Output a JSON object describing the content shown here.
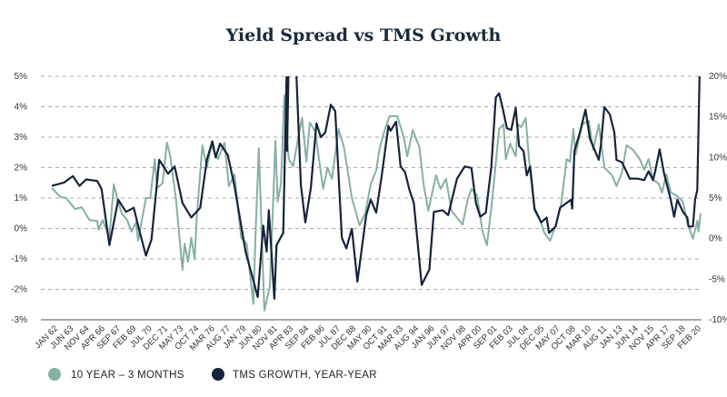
{
  "chart_data": {
    "type": "line",
    "title": "Yield Spread vs TMS Growth",
    "x_tick_labels": [
      "JAN 62",
      "JUN 63",
      "NOV 64",
      "APR 66",
      "SEP 67",
      "FEB 69",
      "JUL 70",
      "DEC 71",
      "MAY 73",
      "OCT 74",
      "MAR 76",
      "AUG 77",
      "JAN 79",
      "JUN 80",
      "NOV 81",
      "APR 83",
      "SEP 84",
      "FEB 86",
      "JUL 87",
      "DEC 88",
      "MAY 90",
      "OCT 91",
      "MAR 93",
      "AUG 94",
      "JAN 96",
      "JUN 97",
      "NOV 98",
      "APR 00",
      "SEP 01",
      "FEB 03",
      "JUL 04",
      "DEC 05",
      "MAY 07",
      "OCT 08",
      "MAR 10",
      "AUG 11",
      "JAN 13",
      "JUN 14",
      "NOV 15",
      "APR 17",
      "SEP 18",
      "FEB 20"
    ],
    "x_range": [
      1962.0,
      2020.6
    ],
    "y_left": {
      "range": [
        -3,
        5
      ],
      "ticks": [
        "-3%",
        "-2%",
        "-1%",
        "0%",
        "1%",
        "2%",
        "3%",
        "4%",
        "5%"
      ]
    },
    "y_right": {
      "range": [
        -10,
        20
      ],
      "ticks": [
        "-10%",
        "-5%",
        "0%",
        "5%",
        "10%",
        "15%",
        "20%"
      ]
    },
    "grid": true,
    "legend_placement": "bottom-left",
    "series": [
      {
        "name": "10 YEAR – 3 MONTHS",
        "axis": "left",
        "color": "#86b0a0",
        "points": [
          [
            1962.0,
            1.33
          ],
          [
            1962.8,
            1.03
          ],
          [
            1963.3,
            1.0
          ],
          [
            1964.1,
            0.64
          ],
          [
            1964.7,
            0.7
          ],
          [
            1965.4,
            0.28
          ],
          [
            1966.1,
            0.25
          ],
          [
            1966.2,
            -0.04
          ],
          [
            1966.6,
            0.28
          ],
          [
            1967.2,
            -0.3
          ],
          [
            1967.6,
            1.45
          ],
          [
            1967.9,
            1.0
          ],
          [
            1968.3,
            0.5
          ],
          [
            1968.8,
            0.28
          ],
          [
            1969.2,
            -0.1
          ],
          [
            1969.6,
            0.2
          ],
          [
            1969.8,
            -0.4
          ],
          [
            1970.5,
            1.0
          ],
          [
            1970.9,
            1.0
          ],
          [
            1971.3,
            2.28
          ],
          [
            1971.5,
            1.33
          ],
          [
            1972.0,
            1.48
          ],
          [
            1972.4,
            2.82
          ],
          [
            1972.7,
            2.37
          ],
          [
            1973.2,
            1.0
          ],
          [
            1973.8,
            -1.36
          ],
          [
            1974.0,
            -0.5
          ],
          [
            1974.3,
            -1.1
          ],
          [
            1974.6,
            -0.3
          ],
          [
            1974.9,
            -1.0
          ],
          [
            1975.1,
            0.4
          ],
          [
            1975.6,
            2.73
          ],
          [
            1976.0,
            2.0
          ],
          [
            1976.4,
            2.73
          ],
          [
            1977.0,
            2.28
          ],
          [
            1977.6,
            2.82
          ],
          [
            1978.0,
            1.39
          ],
          [
            1978.5,
            1.78
          ],
          [
            1979.1,
            -0.3
          ],
          [
            1979.6,
            -0.5
          ],
          [
            1980.2,
            -2.48
          ],
          [
            1980.4,
            -0.2
          ],
          [
            1980.7,
            2.64
          ],
          [
            1981.2,
            -2.7
          ],
          [
            1981.7,
            -1.9
          ],
          [
            1982.2,
            2.88
          ],
          [
            1982.4,
            0.88
          ],
          [
            1982.7,
            1.48
          ],
          [
            1983.0,
            4.37
          ],
          [
            1983.4,
            2.28
          ],
          [
            1983.8,
            2.04
          ],
          [
            1984.2,
            2.88
          ],
          [
            1984.6,
            3.63
          ],
          [
            1985.0,
            2.19
          ],
          [
            1985.3,
            3.48
          ],
          [
            1985.8,
            3.18
          ],
          [
            1986.1,
            2.37
          ],
          [
            1986.5,
            1.3
          ],
          [
            1986.9,
            2.0
          ],
          [
            1987.3,
            1.63
          ],
          [
            1987.9,
            3.27
          ],
          [
            1988.4,
            2.64
          ],
          [
            1989.1,
            1.0
          ],
          [
            1989.8,
            0.1
          ],
          [
            1990.3,
            0.49
          ],
          [
            1990.8,
            1.45
          ],
          [
            1991.3,
            1.9
          ],
          [
            1991.6,
            2.64
          ],
          [
            1992.1,
            3.27
          ],
          [
            1992.5,
            3.69
          ],
          [
            1993.2,
            3.69
          ],
          [
            1993.8,
            2.97
          ],
          [
            1994.1,
            2.37
          ],
          [
            1994.6,
            3.24
          ],
          [
            1995.2,
            2.67
          ],
          [
            1995.6,
            1.39
          ],
          [
            1996.0,
            0.58
          ],
          [
            1996.7,
            1.75
          ],
          [
            1997.1,
            1.3
          ],
          [
            1997.6,
            1.63
          ],
          [
            1998.1,
            0.58
          ],
          [
            1999.1,
            0.13
          ],
          [
            1999.6,
            1.0
          ],
          [
            1999.9,
            1.3
          ],
          [
            2000.4,
            1.09
          ],
          [
            2000.9,
            -0.1
          ],
          [
            2001.3,
            -0.55
          ],
          [
            2001.7,
            0.7
          ],
          [
            2002.0,
            1.78
          ],
          [
            2002.4,
            3.27
          ],
          [
            2002.8,
            3.42
          ],
          [
            2003.0,
            2.28
          ],
          [
            2003.4,
            2.79
          ],
          [
            2003.9,
            2.37
          ],
          [
            2004.1,
            3.42
          ],
          [
            2004.4,
            3.33
          ],
          [
            2004.8,
            3.63
          ],
          [
            2005.1,
            2.28
          ],
          [
            2005.6,
            0.58
          ],
          [
            2006.1,
            0.28
          ],
          [
            2006.5,
            -0.16
          ],
          [
            2007.0,
            -0.4
          ],
          [
            2007.5,
            0.1
          ],
          [
            2008.0,
            0.79
          ],
          [
            2008.5,
            2.28
          ],
          [
            2008.8,
            2.19
          ],
          [
            2009.1,
            3.27
          ],
          [
            2009.3,
            2.43
          ],
          [
            2009.9,
            3.42
          ],
          [
            2010.5,
            3.54
          ],
          [
            2010.9,
            2.58
          ],
          [
            2011.4,
            3.42
          ],
          [
            2011.9,
            2.0
          ],
          [
            2012.6,
            1.75
          ],
          [
            2013.0,
            1.39
          ],
          [
            2013.5,
            1.84
          ],
          [
            2013.9,
            2.73
          ],
          [
            2014.5,
            2.58
          ],
          [
            2015.1,
            2.28
          ],
          [
            2015.5,
            1.93
          ],
          [
            2015.9,
            2.28
          ],
          [
            2016.3,
            1.6
          ],
          [
            2016.8,
            1.48
          ],
          [
            2017.1,
            1.18
          ],
          [
            2017.5,
            1.78
          ],
          [
            2017.9,
            1.18
          ],
          [
            2018.4,
            1.09
          ],
          [
            2019.0,
            0.88
          ],
          [
            2019.4,
            0.19
          ],
          [
            2019.9,
            -0.34
          ],
          [
            2020.3,
            0.25
          ],
          [
            2020.4,
            -0.1
          ],
          [
            2020.6,
            0.49
          ]
        ]
      },
      {
        "name": "TMS GROWTH, YEAR-YEAR",
        "axis": "right",
        "color": "#16233a",
        "points": [
          [
            1962.0,
            6.5
          ],
          [
            1963.1,
            6.9
          ],
          [
            1963.9,
            7.7
          ],
          [
            1964.5,
            6.5
          ],
          [
            1965.1,
            7.3
          ],
          [
            1966.1,
            7.1
          ],
          [
            1966.5,
            6.1
          ],
          [
            1967.2,
            -0.8
          ],
          [
            1968.0,
            4.8
          ],
          [
            1968.7,
            3.3
          ],
          [
            1969.4,
            3.8
          ],
          [
            1969.9,
            1.0
          ],
          [
            1970.5,
            -2.1
          ],
          [
            1971.0,
            -0.1
          ],
          [
            1971.7,
            9.7
          ],
          [
            1972.5,
            8.0
          ],
          [
            1973.1,
            8.9
          ],
          [
            1973.8,
            4.4
          ],
          [
            1974.6,
            2.6
          ],
          [
            1975.4,
            3.8
          ],
          [
            1976.0,
            9.7
          ],
          [
            1976.5,
            12.0
          ],
          [
            1976.8,
            10.0
          ],
          [
            1977.2,
            11.7
          ],
          [
            1977.9,
            10.3
          ],
          [
            1978.5,
            6.5
          ],
          [
            1979.5,
            -1.6
          ],
          [
            1980.1,
            -4.6
          ],
          [
            1980.6,
            -7.2
          ],
          [
            1981.1,
            1.6
          ],
          [
            1981.4,
            -1.6
          ],
          [
            1981.6,
            3.5
          ],
          [
            1982.1,
            -7.4
          ],
          [
            1982.3,
            -0.8
          ],
          [
            1982.9,
            0.7
          ],
          [
            1983.2,
            20
          ],
          [
            1983.25,
            10.8
          ],
          [
            1983.4,
            22
          ],
          [
            1984.0,
            22
          ],
          [
            1984.1,
            19.8
          ],
          [
            1984.5,
            6.6
          ],
          [
            1984.9,
            2.0
          ],
          [
            1985.4,
            6.3
          ],
          [
            1985.9,
            14.2
          ],
          [
            1986.3,
            12.5
          ],
          [
            1986.7,
            13.1
          ],
          [
            1987.2,
            16.5
          ],
          [
            1987.6,
            15.7
          ],
          [
            1988.2,
            0.1
          ],
          [
            1988.6,
            -1.2
          ],
          [
            1989.1,
            1.2
          ],
          [
            1989.6,
            -5.3
          ],
          [
            1990.4,
            2.9
          ],
          [
            1990.8,
            4.8
          ],
          [
            1991.3,
            3.2
          ],
          [
            1991.8,
            7.8
          ],
          [
            1992.4,
            13.9
          ],
          [
            1992.6,
            13.3
          ],
          [
            1993.1,
            14.4
          ],
          [
            1993.5,
            8.9
          ],
          [
            1993.9,
            8.2
          ],
          [
            1994.3,
            6.0
          ],
          [
            1994.7,
            4.4
          ],
          [
            1995.4,
            -5.7
          ],
          [
            1996.1,
            -3.8
          ],
          [
            1996.5,
            3.3
          ],
          [
            1997.3,
            3.5
          ],
          [
            1997.8,
            2.9
          ],
          [
            1998.6,
            7.4
          ],
          [
            1999.3,
            8.9
          ],
          [
            1999.9,
            8.7
          ],
          [
            2000.3,
            4.4
          ],
          [
            2000.7,
            2.7
          ],
          [
            2001.2,
            3.2
          ],
          [
            2001.7,
            8.9
          ],
          [
            2002.1,
            17.4
          ],
          [
            2002.4,
            17.9
          ],
          [
            2002.7,
            16.2
          ],
          [
            2003.1,
            13.6
          ],
          [
            2003.5,
            13.4
          ],
          [
            2003.9,
            16.1
          ],
          [
            2004.2,
            11.4
          ],
          [
            2004.6,
            10.8
          ],
          [
            2004.9,
            7.8
          ],
          [
            2005.2,
            8.9
          ],
          [
            2005.6,
            3.7
          ],
          [
            2006.2,
            2.0
          ],
          [
            2006.7,
            2.6
          ],
          [
            2006.9,
            0.7
          ],
          [
            2007.5,
            1.5
          ],
          [
            2007.9,
            3.8
          ],
          [
            2008.5,
            4.4
          ],
          [
            2008.9,
            4.8
          ],
          [
            2009.0,
            3.7
          ],
          [
            2009.2,
            10.8
          ],
          [
            2009.7,
            13.1
          ],
          [
            2010.2,
            15.9
          ],
          [
            2010.6,
            12.3
          ],
          [
            2011.4,
            9.7
          ],
          [
            2011.6,
            11.6
          ],
          [
            2011.9,
            16.2
          ],
          [
            2012.4,
            15.3
          ],
          [
            2012.8,
            13.1
          ],
          [
            2013.0,
            9.7
          ],
          [
            2013.5,
            9.4
          ],
          [
            2014.2,
            7.4
          ],
          [
            2014.9,
            7.4
          ],
          [
            2015.5,
            7.2
          ],
          [
            2015.9,
            8.3
          ],
          [
            2016.3,
            7.2
          ],
          [
            2016.5,
            8.3
          ],
          [
            2016.9,
            11.0
          ],
          [
            2017.3,
            8.0
          ],
          [
            2017.9,
            4.8
          ],
          [
            2018.2,
            2.7
          ],
          [
            2018.5,
            4.8
          ],
          [
            2019.0,
            3.3
          ],
          [
            2019.4,
            2.6
          ],
          [
            2019.5,
            1.5
          ],
          [
            2019.9,
            1.5
          ],
          [
            2020.1,
            4.8
          ],
          [
            2020.3,
            6.0
          ],
          [
            2020.5,
            20.0
          ]
        ]
      }
    ]
  }
}
